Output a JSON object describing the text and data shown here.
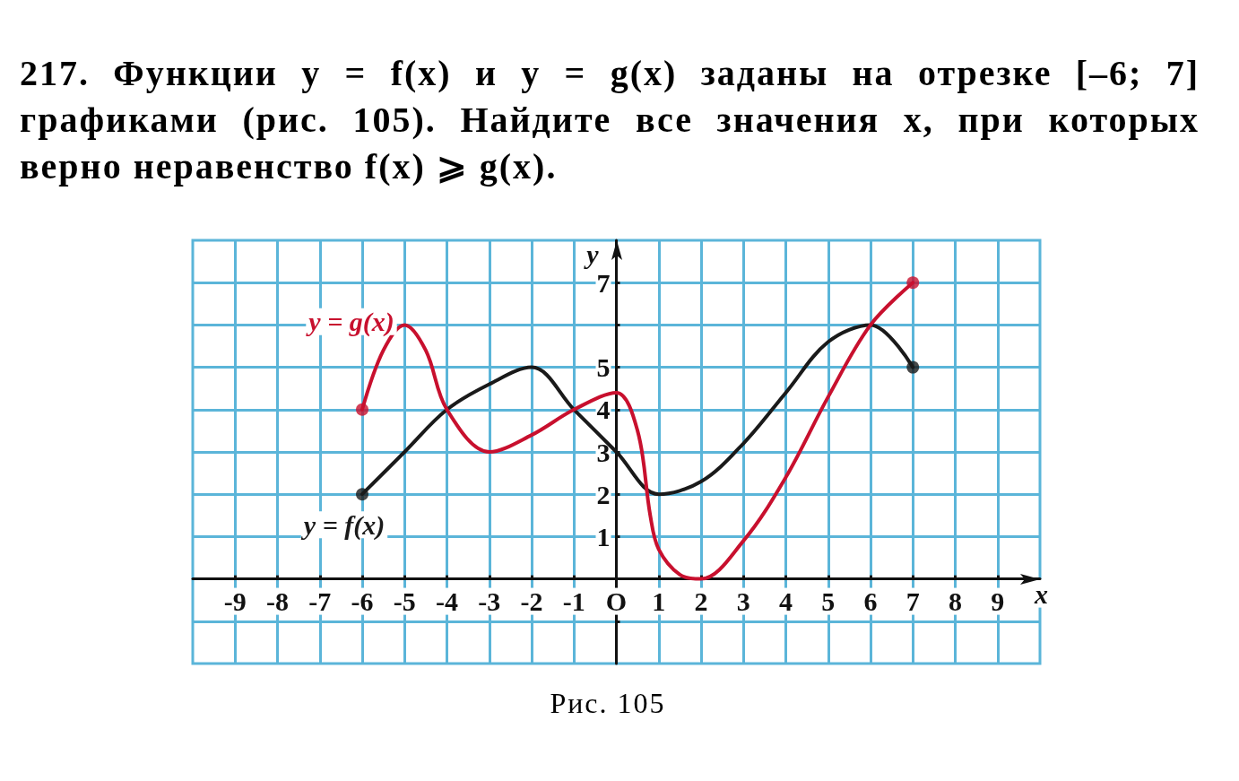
{
  "chart_data": {
    "type": "line",
    "title": "217. Функции y = f(x) и y = g(x) заданы на отрезке [–6; 7] графиками (рис. 105). Найдите все значения x, при которых верно неравенство f(x) ⩾ g(x).",
    "xlabel": "x",
    "ylabel": "y",
    "annotations": [
      "Рис. 105"
    ],
    "xlim": [
      -10,
      10
    ],
    "ylim": [
      -2,
      8
    ],
    "xticks": [
      -9,
      -8,
      -7,
      -6,
      -5,
      -4,
      -3,
      -2,
      -1,
      {
        "value": 0,
        "label": "O"
      },
      1,
      2,
      3,
      4,
      5,
      6,
      7,
      8,
      9
    ],
    "yticks": [
      {
        "value": -1,
        "label": null
      },
      1,
      2,
      3,
      4,
      5,
      {
        "value": 6,
        "label": null
      },
      7
    ],
    "grid": true,
    "legend": false,
    "marker": "none",
    "line_style": "solid",
    "series": [
      {
        "name": "y = f(x)",
        "color": "#1a1a1a",
        "x": [
          -6,
          -5,
          -4,
          -3,
          -2,
          -1,
          0,
          1,
          2,
          3,
          4,
          5,
          6,
          7
        ],
        "values": [
          2,
          3,
          4,
          4.6,
          5,
          4,
          3,
          2,
          2.3,
          3.2,
          4.4,
          5.6,
          6,
          5
        ]
      },
      {
        "name": "y = g(x)",
        "color": "#c8102e",
        "x": [
          -6,
          -5.5,
          -5,
          -4.5,
          -4,
          -3,
          -2,
          -1,
          0,
          0.5,
          0.8,
          1,
          1.5,
          2,
          3,
          4,
          5,
          6,
          7
        ],
        "values": [
          4,
          5.4,
          6,
          5.4,
          4,
          3,
          3.4,
          4,
          4.4,
          3.5,
          1.5,
          0.7,
          0.1,
          0,
          0.9,
          2.4,
          4.3,
          6,
          7
        ]
      },
      {
        "type": "scatter",
        "marker": "circle",
        "color": "#1a1a1a",
        "x": [
          -6,
          7
        ],
        "values": [
          2,
          5
        ]
      },
      {
        "type": "scatter",
        "marker": "circle",
        "color": "#c8102e",
        "x": [
          -6,
          7
        ],
        "values": [
          4,
          7
        ]
      }
    ]
  }
}
